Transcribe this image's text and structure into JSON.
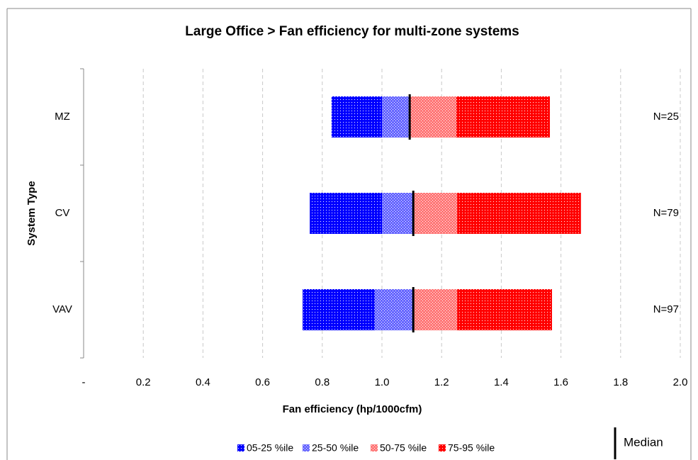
{
  "chart_data": {
    "type": "percentile_bar",
    "title": "Large Office > Fan efficiency for multi-zone systems",
    "x_label": "Fan efficiency (hp/1000cfm)",
    "y_label": "System Type",
    "categories": [
      "MZ",
      "CV",
      "VAV"
    ],
    "values": [
      [
        0.831,
        1.0,
        1.093,
        1.249,
        1.563
      ],
      [
        0.758,
        1.0,
        1.105,
        1.252,
        1.667
      ],
      [
        0.734,
        0.976,
        1.105,
        1.252,
        1.57
      ]
    ],
    "n_labels": [
      "N=25",
      "N=79",
      "N=97"
    ],
    "series": [
      {
        "name": "05-25 %ile",
        "color": "#0000ff"
      },
      {
        "name": "25-50 %ile",
        "color": "#6666ff"
      },
      {
        "name": "50-75 %ile",
        "color": "#ff7777"
      },
      {
        "name": "75-95 %ile",
        "color": "#ff0000"
      }
    ],
    "median_label": "Median",
    "xlim": [
      0,
      2.0
    ],
    "xticks": [
      {
        "value": 0,
        "label": "-"
      },
      0.2,
      0.4,
      0.6,
      0.8,
      {
        "value": 1.0,
        "label": "1.0"
      },
      1.2,
      1.4,
      1.6,
      1.8,
      {
        "value": 2.0,
        "label": "2.0"
      }
    ],
    "grid": true
  }
}
